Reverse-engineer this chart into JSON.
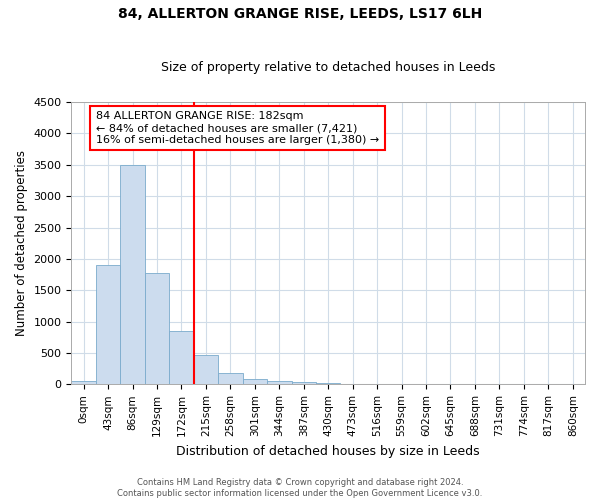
{
  "title": "84, ALLERTON GRANGE RISE, LEEDS, LS17 6LH",
  "subtitle": "Size of property relative to detached houses in Leeds",
  "xlabel": "Distribution of detached houses by size in Leeds",
  "ylabel": "Number of detached properties",
  "bar_labels": [
    "0sqm",
    "43sqm",
    "86sqm",
    "129sqm",
    "172sqm",
    "215sqm",
    "258sqm",
    "301sqm",
    "344sqm",
    "387sqm",
    "430sqm",
    "473sqm",
    "516sqm",
    "559sqm",
    "602sqm",
    "645sqm",
    "688sqm",
    "731sqm",
    "774sqm",
    "817sqm",
    "860sqm"
  ],
  "bar_values": [
    50,
    1900,
    3500,
    1780,
    850,
    460,
    175,
    90,
    50,
    30,
    20,
    10,
    0,
    0,
    0,
    0,
    0,
    0,
    0,
    0,
    0
  ],
  "bar_color": "#ccdcee",
  "bar_edge_color": "#7aabcc",
  "vline_color": "red",
  "annotation_line1": "84 ALLERTON GRANGE RISE: 182sqm",
  "annotation_line2": "← 84% of detached houses are smaller (7,421)",
  "annotation_line3": "16% of semi-detached houses are larger (1,380) →",
  "ylim": [
    0,
    4500
  ],
  "yticks": [
    0,
    500,
    1000,
    1500,
    2000,
    2500,
    3000,
    3500,
    4000,
    4500
  ],
  "footer_line1": "Contains HM Land Registry data © Crown copyright and database right 2024.",
  "footer_line2": "Contains public sector information licensed under the Open Government Licence v3.0.",
  "grid_color": "#d0dce8",
  "plot_bg_color": "#ffffff"
}
